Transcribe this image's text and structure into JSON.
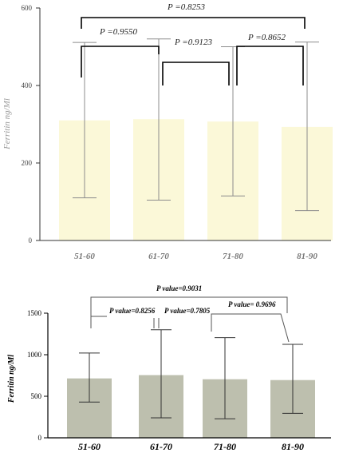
{
  "chart_data": [
    {
      "type": "bar",
      "title": "",
      "ylabel": "Ferritin ng/Ml",
      "ylim": [
        0,
        600
      ],
      "yticks": [
        "0",
        "200",
        "400",
        "600"
      ],
      "categories": [
        "51-60",
        "61-70",
        "71-80",
        "81-90"
      ],
      "values": [
        310,
        313,
        307,
        293
      ],
      "error_low": [
        110,
        104,
        115,
        77
      ],
      "error_high": [
        511,
        520,
        500,
        512
      ],
      "bar_color": "#fbf8d8",
      "error_color": "#8c8c8c",
      "comparisons": [
        {
          "pair": [
            "51-60",
            "81-90"
          ],
          "label": "P =0.8253"
        },
        {
          "pair": [
            "51-60",
            "61-70"
          ],
          "label": "P =0.9550"
        },
        {
          "pair": [
            "61-70",
            "71-80"
          ],
          "label": "P =0.9123"
        },
        {
          "pair": [
            "71-80",
            "81-90"
          ],
          "label": "P =0.8652"
        }
      ]
    },
    {
      "type": "bar",
      "title": "",
      "ylabel": "Ferritin ng/Ml",
      "ylim": [
        0,
        1500
      ],
      "yticks": [
        "0",
        "500",
        "1000",
        "1500"
      ],
      "categories": [
        "51-60",
        "61-70",
        "71-80",
        "81-90"
      ],
      "values": [
        715,
        755,
        705,
        695
      ],
      "error_low": [
        430,
        240,
        230,
        295
      ],
      "error_high": [
        1020,
        1300,
        1205,
        1125
      ],
      "bar_color": "#bdbfae",
      "error_color": "#333333",
      "comparisons": [
        {
          "pair": [
            "51-60",
            "81-90"
          ],
          "label": "P value=0.9031"
        },
        {
          "pair": [
            "51-60",
            "61-70"
          ],
          "label": "P value=0.8256"
        },
        {
          "pair": [
            "61-70",
            "71-80"
          ],
          "label": "P value=0.7805"
        },
        {
          "pair": [
            "71-80",
            "81-90"
          ],
          "label": "P value= 0.9696"
        }
      ]
    }
  ]
}
